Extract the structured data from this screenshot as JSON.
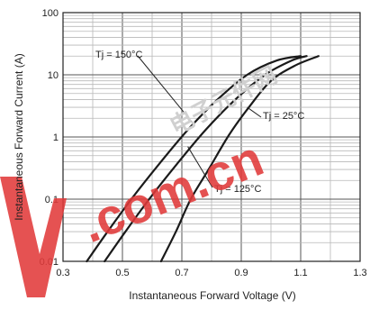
{
  "chart_data": {
    "type": "line",
    "title": "",
    "xlabel": "Instantaneous Forward Voltage (V)",
    "ylabel": "Instantaneous Forward Current (A)",
    "xlim": [
      0.3,
      1.3
    ],
    "ylim": [
      0.01,
      100
    ],
    "y_scale": "log",
    "grid": true,
    "x_ticks": [
      "0.3",
      "0.5",
      "0.7",
      "0.9",
      "1.1",
      "1.3"
    ],
    "y_ticks": [
      "0.01",
      "0.1",
      "1",
      "10",
      "100"
    ],
    "series": [
      {
        "name": "Tj = 150°C",
        "x": [
          0.38,
          0.45,
          0.53,
          0.62,
          0.72,
          0.82,
          0.92,
          1.02,
          1.1
        ],
        "y": [
          0.01,
          0.03,
          0.1,
          0.35,
          1.3,
          4,
          10,
          17,
          20
        ]
      },
      {
        "name": "Tj = 125°C",
        "x": [
          0.44,
          0.51,
          0.59,
          0.68,
          0.78,
          0.88,
          0.98,
          1.07,
          1.12
        ],
        "y": [
          0.01,
          0.03,
          0.1,
          0.35,
          1.3,
          4,
          10,
          17,
          20
        ]
      },
      {
        "name": "Tj = 25°C",
        "x": [
          0.63,
          0.68,
          0.73,
          0.79,
          0.86,
          0.93,
          1.0,
          1.08,
          1.16
        ],
        "y": [
          0.01,
          0.03,
          0.1,
          0.3,
          1.1,
          3.2,
          8,
          14,
          20
        ]
      }
    ],
    "annotations": [
      {
        "label": "Tj = 150°C",
        "series": 0
      },
      {
        "label": "Tj = 25°C",
        "series": 2
      },
      {
        "label": "Tj = 125°C",
        "series": 1
      }
    ],
    "colors": {
      "line": "#1a1a1a",
      "grid_major": "#555555",
      "grid_minor": "#b8b8b8",
      "watermark": "#e13a3a"
    }
  },
  "watermark": {
    "cn_text": "电子元件网",
    "com_text": ".com.cn",
    "v_logo": "V"
  }
}
